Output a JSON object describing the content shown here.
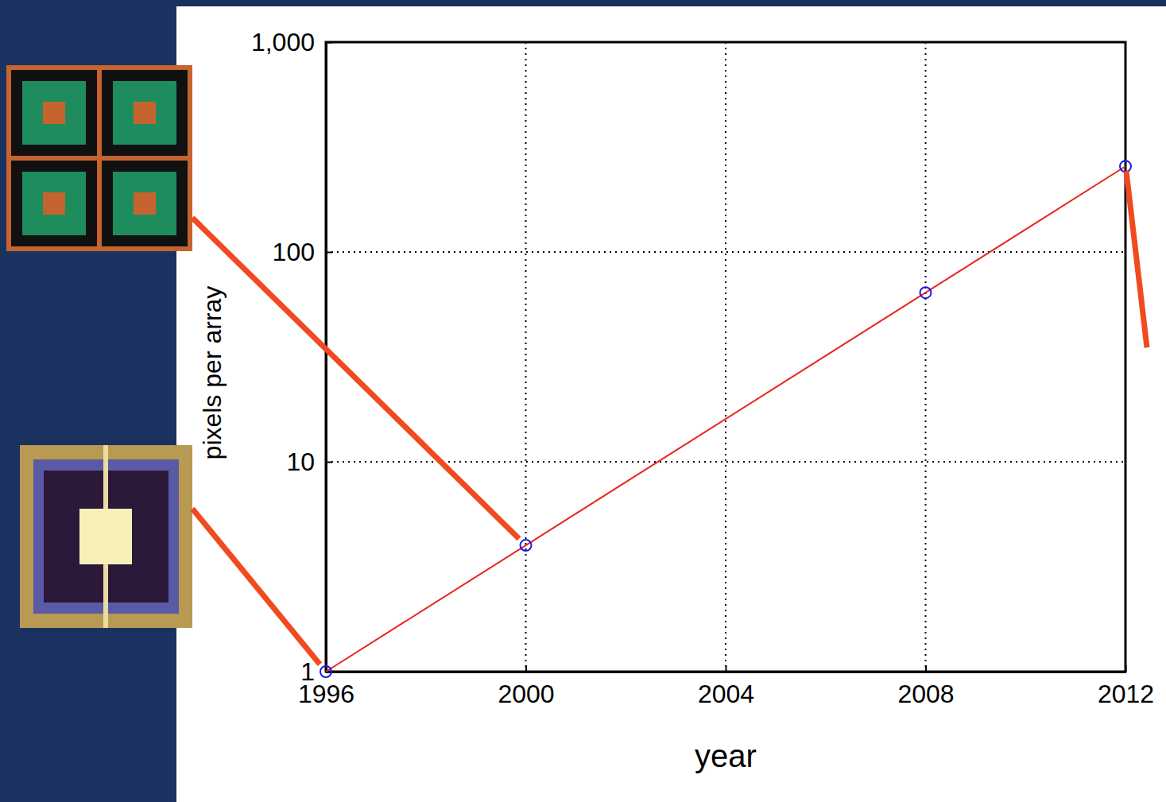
{
  "chart_data": {
    "type": "line",
    "x": [
      1996,
      2000,
      2008,
      2012
    ],
    "values": [
      1,
      4,
      64,
      256
    ],
    "color": "#e8291c",
    "marker": "circle",
    "xlim": [
      1996,
      2012
    ],
    "ylim": [
      1,
      1000
    ],
    "xticks": [
      1996,
      2000,
      2004,
      2008,
      2012
    ],
    "yticks": [
      1,
      10,
      100,
      {
        "value": 1000,
        "label": "1,000"
      }
    ],
    "log": "y",
    "grid": true,
    "xlabel": "year",
    "ylabel": "pixels per array"
  }
}
